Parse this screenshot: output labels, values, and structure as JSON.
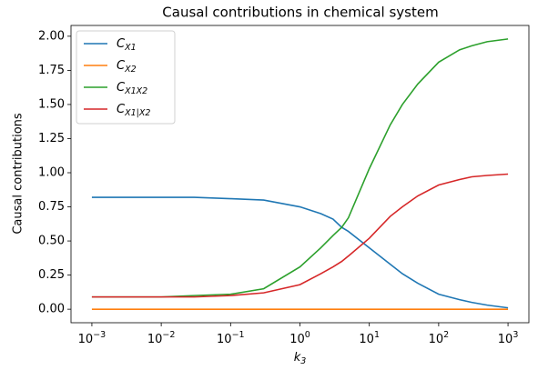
{
  "chart_data": {
    "type": "line",
    "title": "Causal contributions in chemical system",
    "xlabel": "k3",
    "ylabel": "Causal contributions",
    "x": [
      0.001,
      0.003,
      0.01,
      0.03,
      0.1,
      0.3,
      1,
      2,
      3,
      4,
      5,
      10,
      20,
      30,
      50,
      100,
      200,
      300,
      500,
      1000
    ],
    "series": [
      {
        "name": "CX1",
        "color": "#1f77b4",
        "values": [
          0.82,
          0.82,
          0.82,
          0.82,
          0.81,
          0.8,
          0.75,
          0.7,
          0.66,
          0.6,
          0.57,
          0.45,
          0.33,
          0.26,
          0.19,
          0.11,
          0.07,
          0.05,
          0.03,
          0.01
        ]
      },
      {
        "name": "CX2",
        "color": "#ff7f0e",
        "values": [
          0,
          0,
          0,
          0,
          0,
          0,
          0,
          0,
          0,
          0,
          0,
          0,
          0,
          0,
          0,
          0,
          0,
          0,
          0,
          0
        ]
      },
      {
        "name": "CX1X2",
        "color": "#2ca02c",
        "values": [
          0.09,
          0.09,
          0.09,
          0.1,
          0.11,
          0.15,
          0.31,
          0.45,
          0.54,
          0.6,
          0.67,
          1.03,
          1.35,
          1.5,
          1.65,
          1.81,
          1.9,
          1.93,
          1.96,
          1.98
        ]
      },
      {
        "name": "CX1|X2",
        "color": "#d62728",
        "values": [
          0.09,
          0.09,
          0.09,
          0.09,
          0.1,
          0.12,
          0.18,
          0.26,
          0.31,
          0.35,
          0.39,
          0.52,
          0.68,
          0.75,
          0.83,
          0.91,
          0.95,
          0.97,
          0.98,
          0.99
        ]
      }
    ],
    "xscale": "log",
    "xlim": [
      0.0005,
      2000
    ],
    "xticks": [
      {
        "value": 0.001,
        "label": "10−3"
      },
      {
        "value": 0.01,
        "label": "10−2"
      },
      {
        "value": 0.1,
        "label": "10−1"
      },
      {
        "value": 1,
        "label": "100"
      },
      {
        "value": 10,
        "label": "101"
      },
      {
        "value": 100,
        "label": "102"
      },
      {
        "value": 1000,
        "label": "103"
      }
    ],
    "ylim": [
      -0.099,
      2.079
    ],
    "yticks": [
      {
        "value": 0,
        "label": "0.00"
      },
      {
        "value": 0.25,
        "label": "0.25"
      },
      {
        "value": 0.5,
        "label": "0.50"
      },
      {
        "value": 0.75,
        "label": "0.75"
      },
      {
        "value": 1,
        "label": "1.00"
      },
      {
        "value": 1.25,
        "label": "1.25"
      },
      {
        "value": 1.5,
        "label": "1.50"
      },
      {
        "value": 1.75,
        "label": "1.75"
      },
      {
        "value": 2,
        "label": "2.00"
      }
    ],
    "grid": false,
    "legend": "upper left"
  }
}
